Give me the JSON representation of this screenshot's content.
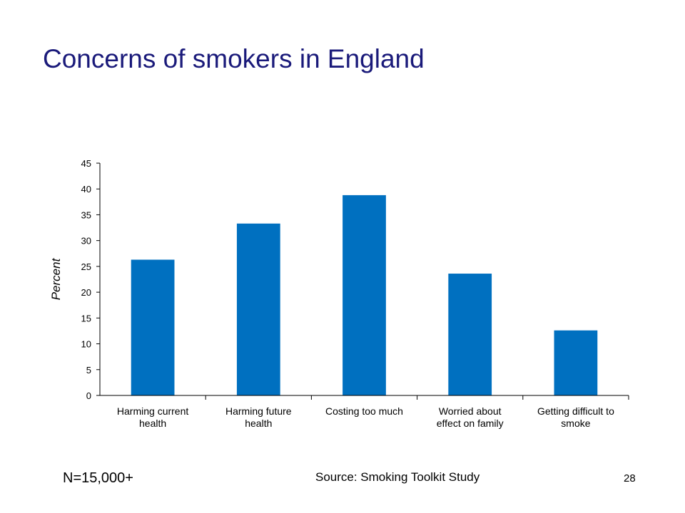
{
  "slide": {
    "title": "Concerns of smokers in England",
    "sample_note": "N=15,000+",
    "source": "Source: Smoking Toolkit Study",
    "page_number": "28"
  },
  "colors": {
    "title": "#1a1a7a",
    "bar": "#0070c0",
    "axis": "#000000"
  },
  "chart_data": {
    "type": "bar",
    "title": "",
    "xlabel": "",
    "ylabel": "Percent",
    "ylim": [
      0,
      45
    ],
    "yticks": [
      0,
      5,
      10,
      15,
      20,
      25,
      30,
      35,
      40,
      45
    ],
    "grid": false,
    "legend": "none",
    "categories": [
      [
        "Harming current",
        "health"
      ],
      [
        "Harming future",
        "health"
      ],
      [
        "Costing too much"
      ],
      [
        "Worried about",
        "effect on family"
      ],
      [
        "Getting difficult to",
        "smoke"
      ]
    ],
    "values": [
      26.3,
      33.3,
      38.8,
      23.6,
      12.6
    ]
  }
}
